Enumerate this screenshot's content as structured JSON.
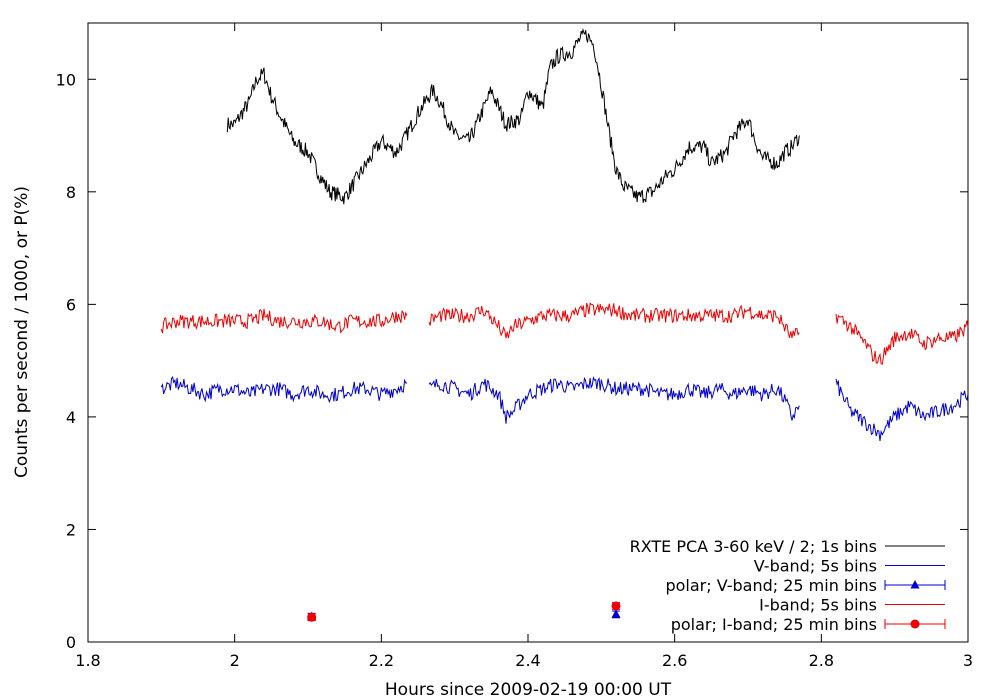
{
  "chart_data": {
    "type": "line",
    "xlabel": "Hours since 2009-02-19 00:00 UT",
    "ylabel": "Counts per second / 1000, or P(%)",
    "xlim": [
      1.8,
      3.0
    ],
    "ylim": [
      0,
      11
    ],
    "x_ticks": [
      1.8,
      2.0,
      2.2,
      2.4,
      2.6,
      2.8,
      3.0
    ],
    "x_tick_labels": [
      "1.8",
      "2",
      "2.2",
      "2.4",
      "2.6",
      "2.8",
      "3"
    ],
    "y_ticks": [
      0,
      2,
      4,
      6,
      8,
      10
    ],
    "y_tick_labels": [
      "0",
      "2",
      "4",
      "6",
      "8",
      "10"
    ],
    "grid": false,
    "legend_position": "bottom-right",
    "series": [
      {
        "name": "RXTE PCA 3-60 keV / 2; 1s bins",
        "kind": "line",
        "color": "#000000",
        "x": [
          1.99,
          2.0,
          2.02,
          2.03,
          2.04,
          2.05,
          2.06,
          2.08,
          2.1,
          2.12,
          2.13,
          2.15,
          2.17,
          2.19,
          2.2,
          2.22,
          2.23,
          2.25,
          2.27,
          2.28,
          2.3,
          2.32,
          2.34,
          2.35,
          2.37,
          2.39,
          2.4,
          2.42,
          2.43,
          2.44,
          2.46,
          2.47,
          2.48,
          2.49,
          2.5,
          2.51,
          2.52,
          2.53,
          2.55,
          2.57,
          2.59,
          2.6,
          2.62,
          2.64,
          2.65,
          2.67,
          2.68,
          2.7,
          2.71,
          2.72,
          2.74,
          2.75,
          2.76,
          2.77
        ],
        "y": [
          9.2,
          9.2,
          9.6,
          10.0,
          10.1,
          9.7,
          9.4,
          8.9,
          8.7,
          8.2,
          8.0,
          7.9,
          8.3,
          8.7,
          8.9,
          8.7,
          8.9,
          9.4,
          9.8,
          9.6,
          9.0,
          8.9,
          9.5,
          9.8,
          9.2,
          9.3,
          9.8,
          9.5,
          10.2,
          10.4,
          10.5,
          10.7,
          10.8,
          10.6,
          9.9,
          9.1,
          8.4,
          8.1,
          7.9,
          8.0,
          8.3,
          8.4,
          8.8,
          8.8,
          8.5,
          8.7,
          9.0,
          9.3,
          8.9,
          8.6,
          8.5,
          8.7,
          8.8,
          9.0
        ]
      },
      {
        "name": "V-band; 5s bins",
        "kind": "line",
        "color": "#0000cc",
        "x": [
          1.9,
          1.92,
          1.94,
          1.96,
          1.98,
          2.0,
          2.02,
          2.04,
          2.06,
          2.08,
          2.1,
          2.12,
          2.14,
          2.16,
          2.18,
          2.2,
          2.22,
          2.235,
          null,
          2.265,
          2.28,
          2.3,
          2.32,
          2.34,
          2.36,
          2.37,
          2.38,
          2.4,
          2.42,
          2.44,
          2.46,
          2.48,
          2.5,
          2.52,
          2.54,
          2.56,
          2.58,
          2.6,
          2.62,
          2.64,
          2.66,
          2.68,
          2.7,
          2.72,
          2.74,
          2.75,
          2.76,
          2.77,
          null,
          2.82,
          2.84,
          2.86,
          2.87,
          2.88,
          2.9,
          2.92,
          2.94,
          2.96,
          2.98,
          3.0
        ],
        "y": [
          4.5,
          4.6,
          4.5,
          4.4,
          4.5,
          4.5,
          4.4,
          4.5,
          4.5,
          4.4,
          4.5,
          4.4,
          4.4,
          4.5,
          4.5,
          4.4,
          4.5,
          4.6,
          null,
          4.5,
          4.6,
          4.5,
          4.4,
          4.6,
          4.4,
          4.0,
          4.1,
          4.4,
          4.5,
          4.6,
          4.5,
          4.6,
          4.6,
          4.5,
          4.5,
          4.5,
          4.4,
          4.4,
          4.5,
          4.4,
          4.5,
          4.4,
          4.5,
          4.4,
          4.5,
          4.3,
          4.0,
          4.2,
          null,
          4.6,
          4.1,
          3.9,
          3.8,
          3.7,
          4.0,
          4.2,
          4.0,
          4.1,
          4.2,
          4.4
        ]
      },
      {
        "name": "polar; V-band; 25 min bins",
        "kind": "points",
        "marker": "triangle",
        "color": "#0000cc",
        "x": [
          2.105,
          2.52
        ],
        "y": [
          0.45,
          0.49
        ],
        "y_err": [
          0.06,
          0.06
        ]
      },
      {
        "name": "I-band; 5s bins",
        "kind": "line",
        "color": "#ee0000",
        "x": [
          1.9,
          1.92,
          1.94,
          1.96,
          1.98,
          2.0,
          2.02,
          2.04,
          2.06,
          2.08,
          2.1,
          2.12,
          2.14,
          2.16,
          2.18,
          2.2,
          2.22,
          2.235,
          null,
          2.265,
          2.28,
          2.3,
          2.32,
          2.34,
          2.36,
          2.37,
          2.38,
          2.4,
          2.42,
          2.44,
          2.46,
          2.48,
          2.5,
          2.52,
          2.54,
          2.56,
          2.58,
          2.6,
          2.62,
          2.64,
          2.66,
          2.68,
          2.7,
          2.72,
          2.74,
          2.75,
          2.76,
          2.77,
          null,
          2.82,
          2.84,
          2.86,
          2.87,
          2.88,
          2.9,
          2.92,
          2.94,
          2.96,
          2.98,
          3.0
        ],
        "y": [
          5.6,
          5.7,
          5.7,
          5.7,
          5.7,
          5.7,
          5.7,
          5.8,
          5.7,
          5.7,
          5.7,
          5.7,
          5.6,
          5.7,
          5.7,
          5.7,
          5.8,
          5.8,
          null,
          5.7,
          5.8,
          5.8,
          5.8,
          5.9,
          5.6,
          5.4,
          5.6,
          5.7,
          5.8,
          5.8,
          5.8,
          5.9,
          5.9,
          5.9,
          5.8,
          5.8,
          5.8,
          5.8,
          5.8,
          5.8,
          5.8,
          5.8,
          5.9,
          5.8,
          5.8,
          5.6,
          5.4,
          5.5,
          null,
          5.8,
          5.6,
          5.3,
          5.1,
          5.0,
          5.4,
          5.5,
          5.3,
          5.4,
          5.4,
          5.6
        ]
      },
      {
        "name": "polar; I-band; 25 min bins",
        "kind": "points",
        "marker": "circle",
        "color": "#ee0000",
        "x": [
          2.105,
          2.52
        ],
        "y": [
          0.44,
          0.64
        ],
        "y_err": [
          0.06,
          0.06
        ]
      }
    ]
  }
}
